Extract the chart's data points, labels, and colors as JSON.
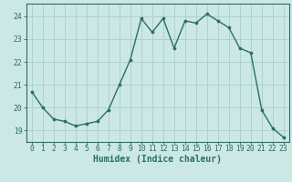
{
  "x": [
    0,
    1,
    2,
    3,
    4,
    5,
    6,
    7,
    8,
    9,
    10,
    11,
    12,
    13,
    14,
    15,
    16,
    17,
    18,
    19,
    20,
    21,
    22,
    23
  ],
  "y": [
    20.7,
    20.0,
    19.5,
    19.4,
    19.2,
    19.3,
    19.4,
    19.9,
    21.0,
    22.1,
    23.9,
    23.3,
    23.9,
    22.6,
    23.8,
    23.7,
    24.1,
    23.8,
    23.5,
    22.6,
    22.4,
    19.9,
    19.1,
    18.7
  ],
  "line_color": "#2a6e65",
  "marker_color": "#2a6e65",
  "bg_color": "#cce8e4",
  "grid_color": "#aad4cf",
  "xlabel": "Humidex (Indice chaleur)",
  "ylim": [
    18.5,
    24.55
  ],
  "xlim": [
    -0.5,
    23.5
  ],
  "yticks": [
    19,
    20,
    21,
    22,
    23,
    24
  ],
  "xticks": [
    0,
    1,
    2,
    3,
    4,
    5,
    6,
    7,
    8,
    9,
    10,
    11,
    12,
    13,
    14,
    15,
    16,
    17,
    18,
    19,
    20,
    21,
    22,
    23
  ],
  "tick_color": "#2a6e65",
  "axis_color": "#2a6e65",
  "xlabel_fontsize": 7.0,
  "tick_fontsize": 5.8,
  "linewidth": 1.0,
  "markersize": 2.2
}
